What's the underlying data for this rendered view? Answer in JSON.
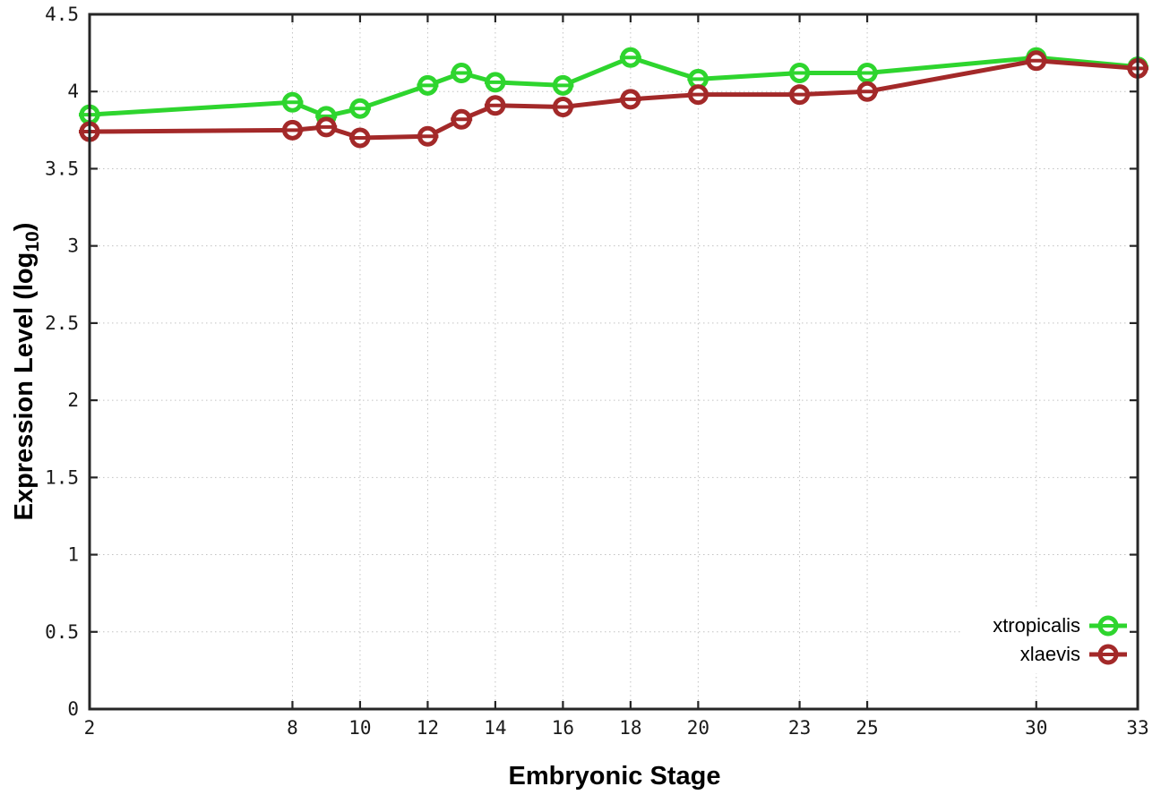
{
  "figure": {
    "background_color": "#ffffff",
    "frame_color": "#262626",
    "grid_color": "#c2c2c2"
  },
  "chart_data": {
    "type": "line",
    "title": "",
    "xlabel": "Embryonic Stage",
    "ylabel": "Expression Level (log10)",
    "ylabel_parts": {
      "prefix": "Expression Level (log",
      "sub": "10",
      "suffix": ")"
    },
    "xlim": [
      2,
      33
    ],
    "ylim": [
      0,
      4.5
    ],
    "x_ticks": [
      2,
      8,
      10,
      12,
      14,
      16,
      18,
      20,
      23,
      25,
      30,
      33
    ],
    "y_ticks": [
      0,
      0.5,
      1,
      1.5,
      2,
      2.5,
      3,
      3.5,
      4,
      4.5
    ],
    "grid": true,
    "grid_style": "dotted",
    "legend_position": "bottom-right",
    "marker": "open-circle-with-horizontal-error-bar",
    "series": [
      {
        "name": "xtropicalis",
        "color": "#2ed52e",
        "x": [
          2,
          8,
          9,
          10,
          12,
          13,
          14,
          16,
          18,
          20,
          23,
          25,
          30,
          33
        ],
        "values": [
          3.85,
          3.93,
          3.84,
          3.89,
          4.04,
          4.12,
          4.06,
          4.04,
          4.22,
          4.08,
          4.12,
          4.12,
          4.22,
          4.16
        ]
      },
      {
        "name": "xlaevis",
        "color": "#a32929",
        "x": [
          2,
          8,
          9,
          10,
          12,
          13,
          14,
          16,
          18,
          20,
          23,
          25,
          30,
          33
        ],
        "values": [
          3.74,
          3.75,
          3.77,
          3.7,
          3.71,
          3.82,
          3.91,
          3.9,
          3.95,
          3.98,
          3.98,
          4.0,
          4.2,
          4.15
        ]
      }
    ]
  }
}
